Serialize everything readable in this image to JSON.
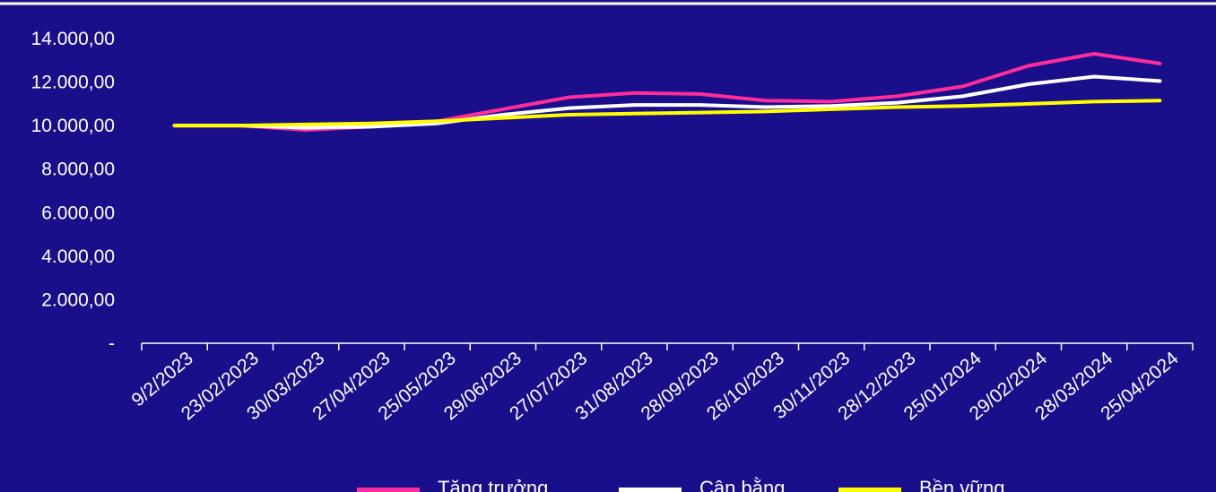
{
  "chart_data": {
    "type": "line",
    "categories": [
      "9/2/2023",
      "23/02/2023",
      "30/03/2023",
      "27/04/2023",
      "25/05/2023",
      "29/06/2023",
      "27/07/2023",
      "31/08/2023",
      "28/09/2023",
      "26/10/2023",
      "30/11/2023",
      "28/12/2023",
      "25/01/2024",
      "29/02/2024",
      "28/03/2024",
      "25/04/2024"
    ],
    "y_tick_labels": [
      "-",
      "2.000,00",
      "4.000,00",
      "6.000,00",
      "8.000,00",
      "10.000,00",
      "12.000,00",
      "14.000,00"
    ],
    "ylim": [
      0,
      14000
    ],
    "series": [
      {
        "name": "Tăng trưởng",
        "color": "#ff2d9b",
        "values": [
          10000,
          10000,
          9800,
          9950,
          10200,
          10750,
          11300,
          11500,
          11450,
          11150,
          11100,
          11350,
          11800,
          12750,
          13300,
          12850
        ]
      },
      {
        "name": "Cân bằng",
        "color": "#ffffff",
        "values": [
          10000,
          10000,
          9900,
          9950,
          10100,
          10500,
          10800,
          10950,
          10950,
          10850,
          10900,
          11050,
          11350,
          11900,
          12250,
          12050
        ]
      },
      {
        "name": "Bền vững",
        "color": "#ffff00",
        "values": [
          10000,
          10000,
          10050,
          10100,
          10200,
          10350,
          10500,
          10550,
          10600,
          10650,
          10750,
          10850,
          10900,
          11000,
          11100,
          11150
        ]
      }
    ],
    "grid": false,
    "legend_position": "bottom"
  }
}
